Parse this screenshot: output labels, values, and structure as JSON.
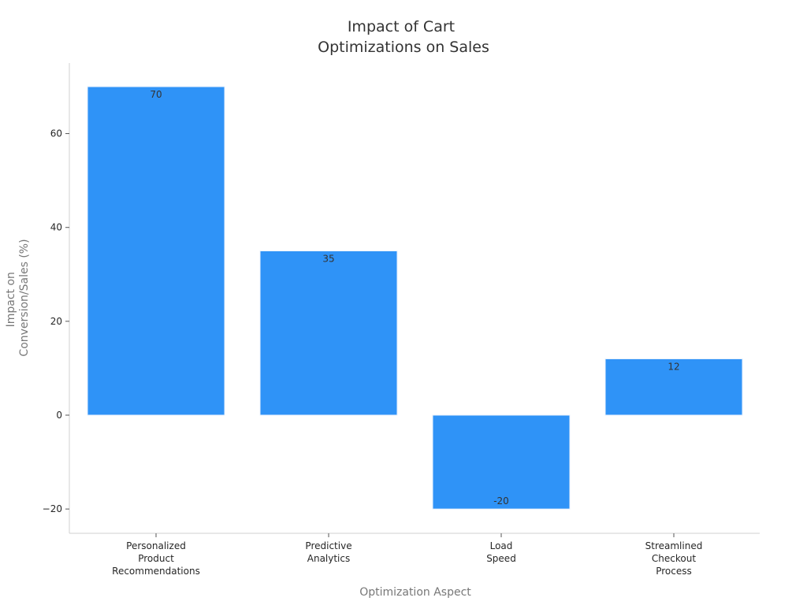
{
  "chart_data": {
    "type": "bar",
    "title": [
      "Impact of Cart",
      "Optimizations on Sales"
    ],
    "xlabel": "Optimization Aspect",
    "ylabel": [
      "Impact on",
      "Conversion/Sales (%)"
    ],
    "categories": [
      [
        "Personalized",
        "Product",
        "Recommendations"
      ],
      [
        "Predictive",
        "Analytics"
      ],
      [
        "Load",
        "Speed"
      ],
      [
        "Streamlined",
        "Checkout",
        "Process"
      ]
    ],
    "values": [
      70,
      35,
      -20,
      12
    ],
    "data_labels": [
      "70",
      "35",
      "-20",
      "12"
    ],
    "yticks": [
      -20,
      0,
      20,
      40,
      60
    ],
    "ytick_labels": [
      "−20",
      "0",
      "20",
      "40",
      "60"
    ],
    "ylim": [
      -25,
      75
    ],
    "grid": false,
    "legend": "none",
    "bar_color": "#2f93f7"
  }
}
